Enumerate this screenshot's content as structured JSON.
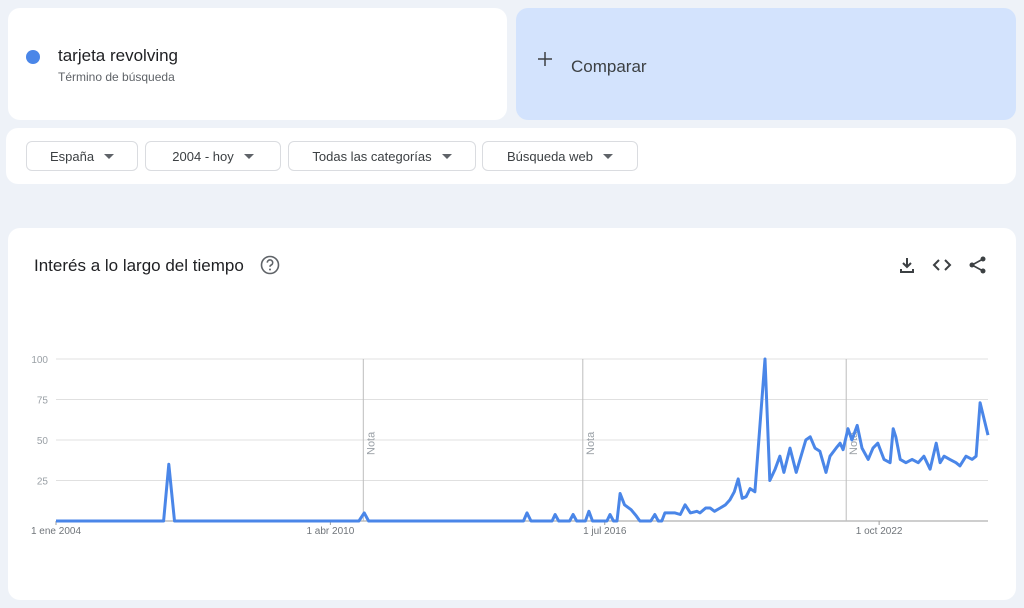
{
  "search_term": {
    "name": "tarjeta revolving",
    "kind": "Término de búsqueda"
  },
  "compare": {
    "label": "Comparar"
  },
  "filters": [
    "España",
    "2004 - hoy",
    "Todas las categorías",
    "Búsqueda web"
  ],
  "chart_data": {
    "type": "line",
    "title": "Interés a lo largo del tiempo",
    "x": [
      2004,
      2006.45,
      2006.57,
      2006.7,
      2010.9,
      2011.02,
      2011.12,
      2014.65,
      2014.73,
      2014.82,
      2015.3,
      2015.37,
      2015.45,
      2015.7,
      2015.78,
      2015.86,
      2016.06,
      2016.14,
      2016.22,
      2016.55,
      2016.62,
      2016.7,
      2016.78,
      2016.85,
      2016.95,
      2017.1,
      2017.22,
      2017.3,
      2017.55,
      2017.64,
      2017.72,
      2017.8,
      2017.87,
      2018.1,
      2018.22,
      2018.33,
      2018.45,
      2018.6,
      2018.67,
      2018.8,
      2018.9,
      2019.0,
      2019.13,
      2019.25,
      2019.35,
      2019.45,
      2019.54,
      2019.63,
      2019.72,
      2019.81,
      2019.92,
      2020.15,
      2020.26,
      2020.38,
      2020.49,
      2020.58,
      2020.72,
      2020.86,
      2021.08,
      2021.18,
      2021.29,
      2021.4,
      2021.54,
      2021.63,
      2021.77,
      2021.86,
      2021.93,
      2022.04,
      2022.13,
      2022.25,
      2022.36,
      2022.5,
      2022.61,
      2022.72,
      2022.86,
      2023.0,
      2023.07,
      2023.13,
      2023.23,
      2023.36,
      2023.5,
      2023.64,
      2023.77,
      2023.91,
      2024.05,
      2024.14,
      2024.23,
      2024.36,
      2024.5,
      2024.59,
      2024.73,
      2024.87,
      2024.96,
      2025.05,
      2025.23
    ],
    "series": [
      {
        "name": "tarjeta revolving",
        "color": "#4a86e8",
        "values": [
          0,
          0,
          35,
          0,
          0,
          5,
          0,
          0,
          5,
          0,
          0,
          4,
          0,
          0,
          4,
          0,
          0,
          6,
          0,
          0,
          4,
          0,
          0,
          17,
          10,
          7,
          3,
          0,
          0,
          4,
          0,
          0,
          5,
          5,
          4,
          10,
          5,
          6,
          5,
          8,
          8,
          6,
          8,
          10,
          13,
          18,
          26,
          14,
          15,
          20,
          18,
          100,
          25,
          32,
          40,
          30,
          45,
          30,
          50,
          52,
          45,
          43,
          30,
          40,
          45,
          48,
          44,
          57,
          50,
          59,
          45,
          38,
          45,
          48,
          38,
          36,
          57,
          52,
          38,
          36,
          38,
          36,
          40,
          32,
          48,
          36,
          40,
          38,
          36,
          34,
          40,
          38,
          40,
          73,
          53
        ]
      }
    ],
    "xlim": [
      2004,
      2025.23
    ],
    "xticks": [
      {
        "value": 2004,
        "label": "1 ene 2004"
      },
      {
        "value": 2010.25,
        "label": "1 abr 2010"
      },
      {
        "value": 2016.5,
        "label": "1 jul 2016"
      },
      {
        "value": 2022.75,
        "label": "1 oct 2022"
      }
    ],
    "ylim": [
      0,
      100
    ],
    "yticks": [
      25,
      50,
      75,
      100
    ],
    "grid": true,
    "annotations": [
      {
        "x": 2011,
        "label": "Nota"
      },
      {
        "x": 2016,
        "label": "Nota"
      },
      {
        "x": 2022,
        "label": "Nota"
      }
    ]
  }
}
